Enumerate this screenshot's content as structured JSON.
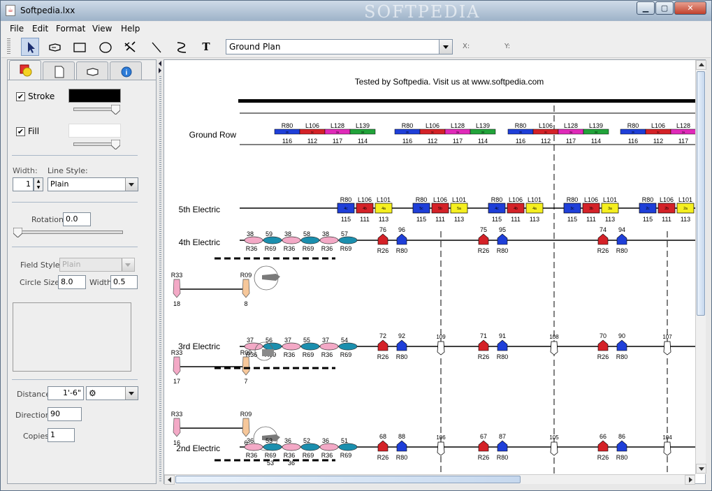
{
  "window": {
    "title": "Softpedia.lxx",
    "watermark": "SOFTPEDIA"
  },
  "menu": [
    "File",
    "Edit",
    "Format",
    "View",
    "Help"
  ],
  "toolbar": {
    "tools": [
      "select-arrow-icon",
      "instrument-icon",
      "rectangle-icon",
      "ellipse-icon",
      "multi-line-icon",
      "line-icon",
      "curve-icon",
      "text-icon"
    ],
    "plan_select": "Ground Plan",
    "x_label": "X:",
    "y_label": "Y:"
  },
  "panel": {
    "stroke_label": "Stroke",
    "stroke_color": "#000000",
    "fill_label": "Fill",
    "fill_color": "#ffffff",
    "width_label": "Width:",
    "width_value": "1",
    "line_style_label": "Line Style:",
    "line_style_value": "Plain",
    "rotation_label": "Rotation:",
    "rotation_value": "0.0",
    "field_style_label": "Field Style:",
    "field_style_value": "Plain",
    "circle_size_label": "Circle Size:",
    "circle_size_value": "8.0",
    "circle_width_label": "Width:",
    "circle_width_value": "0.5",
    "distance_label": "Distance:",
    "distance_value": "1'-6\"",
    "direction_label": "Direction:",
    "direction_value": "90",
    "copies_label": "Copies:",
    "copies_value": "1"
  },
  "canvas": {
    "header_text": "Tested by Softpedia. Visit us at www.softpedia.com",
    "ground_row": {
      "label": "Ground Row",
      "groups": [
        {
          "names": [
            "R80",
            "L106",
            "L128",
            "L139"
          ],
          "nums": [
            "116",
            "112",
            "117",
            "114"
          ],
          "codes": [
            "3b",
            "3c",
            "3a",
            "3d"
          ]
        },
        {
          "names": [
            "R80",
            "L106",
            "L128",
            "L139"
          ],
          "nums": [
            "116",
            "112",
            "117",
            "114"
          ],
          "codes": [
            "3b",
            "3c",
            "3a",
            "3d"
          ]
        },
        {
          "names": [
            "R80",
            "L106",
            "L128",
            "L139"
          ],
          "nums": [
            "116",
            "112",
            "117",
            "114"
          ],
          "codes": [
            "3b",
            "3c",
            "3a",
            "3d"
          ]
        },
        {
          "names": [
            "R80",
            "L106",
            "L128"
          ],
          "nums": [
            "116",
            "112",
            "117"
          ],
          "codes": [
            "3b",
            "3c",
            "3a"
          ]
        }
      ]
    },
    "fifth_electric": {
      "label": "5th Electric",
      "groups": [
        {
          "names": [
            "R80",
            "L106",
            "L101"
          ],
          "nums": [
            "115",
            "111",
            "113"
          ],
          "codes": [
            "4c",
            "4b",
            "4a"
          ]
        },
        {
          "names": [
            "R80",
            "L106",
            "L101"
          ],
          "nums": [
            "115",
            "111",
            "113"
          ],
          "codes": [
            "5c",
            "5b",
            "5a"
          ]
        },
        {
          "names": [
            "R80",
            "L106",
            "L101"
          ],
          "nums": [
            "115",
            "111",
            "113"
          ],
          "codes": [
            "4c",
            "4b",
            "4a"
          ]
        },
        {
          "names": [
            "R80",
            "L106",
            "L101"
          ],
          "nums": [
            "115",
            "111",
            "113"
          ],
          "codes": [
            "3c",
            "3b",
            "3a"
          ]
        },
        {
          "names": [
            "R80",
            "L106",
            "L101"
          ],
          "nums": [
            "115",
            "111",
            "113"
          ],
          "codes": [
            "2c",
            "2b",
            "2a"
          ]
        }
      ]
    },
    "fourth_electric": {
      "label": "4th Electric",
      "ellipses": [
        {
          "top": "38",
          "bottom": "R36"
        },
        {
          "top": "59",
          "bottom": "R69"
        },
        {
          "top": "38",
          "bottom": "R36"
        },
        {
          "top": "58",
          "bottom": "R69"
        },
        {
          "top": "38",
          "bottom": "R36"
        },
        {
          "top": "57",
          "bottom": "R69"
        }
      ],
      "pairs": [
        {
          "top": [
            "76",
            "96"
          ],
          "bottom": [
            "R26",
            "R80"
          ]
        },
        {
          "top": [
            "75",
            "95"
          ],
          "bottom": [
            "R26",
            "R80"
          ]
        },
        {
          "top": [
            "74",
            "94"
          ],
          "bottom": [
            "R26",
            "R80"
          ]
        }
      ]
    },
    "boom_upper": {
      "left_top": "R33",
      "left_bottom": "18",
      "right_top": "R09",
      "right_bottom": "8"
    },
    "third_electric": {
      "label": "3rd Electric",
      "ellipses": [
        {
          "top": "37",
          "bottom": "R36"
        },
        {
          "top": "56",
          "bottom": "R69"
        },
        {
          "top": "37",
          "bottom": "R36"
        },
        {
          "top": "55",
          "bottom": "R69"
        },
        {
          "top": "37",
          "bottom": "R36"
        },
        {
          "top": "54",
          "bottom": "R69"
        }
      ],
      "pairs": [
        {
          "top": [
            "72",
            "92"
          ],
          "bottom": [
            "R26",
            "R80"
          ]
        },
        {
          "top": [
            "71",
            "91"
          ],
          "bottom": [
            "R26",
            "R80"
          ]
        },
        {
          "top": [
            "70",
            "90"
          ],
          "bottom": [
            "R26",
            "R80"
          ]
        }
      ],
      "whites": [
        "109",
        "108",
        "107"
      ],
      "boom": {
        "left_top": "R33",
        "left_bottom": "17",
        "right_top": "R09",
        "right_bottom": "7"
      }
    },
    "boom_lower": {
      "left_top": "R33",
      "left_bottom": "16",
      "right_top": "R09",
      "right_bottom": "6"
    },
    "second_electric": {
      "label": "2nd Electric",
      "ellipses": [
        {
          "top": "36",
          "bottom": "R36"
        },
        {
          "top": "53",
          "bottom": "R69"
        },
        {
          "top": "36",
          "bottom": "R36"
        },
        {
          "top": "52",
          "bottom": "R69"
        },
        {
          "top": "36",
          "bottom": "R36"
        },
        {
          "top": "51",
          "bottom": "R69"
        }
      ],
      "extra_bottom": [
        "53",
        "36"
      ],
      "pairs": [
        {
          "top": [
            "68",
            "88"
          ],
          "bottom": [
            "R26",
            "R80"
          ]
        },
        {
          "top": [
            "67",
            "87"
          ],
          "bottom": [
            "R26",
            "R80"
          ]
        },
        {
          "top": [
            "66",
            "86"
          ],
          "bottom": [
            "R26",
            "R80"
          ]
        }
      ],
      "whites": [
        "106",
        "105",
        "104"
      ]
    },
    "colors": {
      "blue": "#1f3fd8",
      "red": "#d42228",
      "magenta": "#e02ab9",
      "green": "#22a33a",
      "yellow": "#f5ef20",
      "pink": "#f3a9c6",
      "teal": "#1b8fae",
      "peach": "#f6c79a"
    }
  }
}
